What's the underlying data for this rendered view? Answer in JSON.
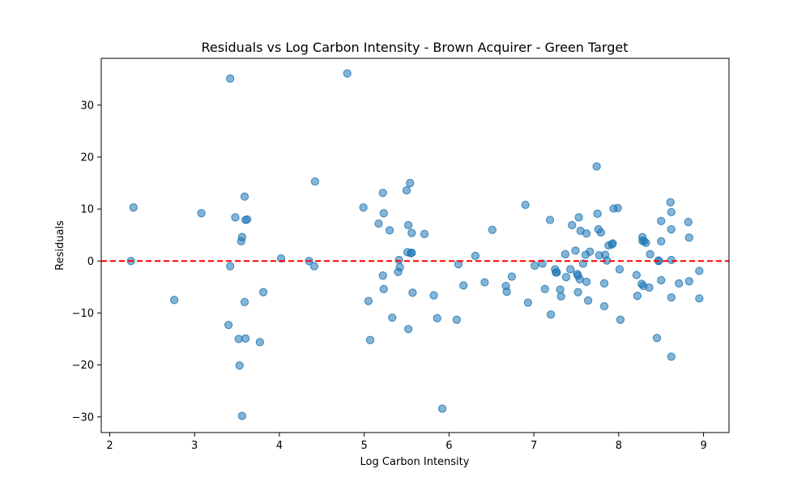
{
  "chart_data": {
    "type": "scatter",
    "title": "Residuals vs Log Carbon Intensity - Brown Acquirer - Green Target",
    "xlabel": "Log Carbon Intensity",
    "ylabel": "Residuals",
    "xlim": [
      1.9,
      9.3
    ],
    "ylim": [
      -33,
      39
    ],
    "xticks": [
      2,
      3,
      4,
      5,
      6,
      7,
      8,
      9
    ],
    "yticks": [
      -30,
      -20,
      -10,
      0,
      10,
      20,
      30
    ],
    "ytick_labels": [
      "−30",
      "−20",
      "−10",
      "0",
      "10",
      "20",
      "30"
    ],
    "grid": false,
    "legend": "none",
    "point_color": "#1f77b4",
    "point_alpha": 0.55,
    "reference_line": {
      "y": 0,
      "color": "#ff0000",
      "style": "dashed"
    },
    "points": [
      {
        "x": 2.25,
        "y": 0.0
      },
      {
        "x": 2.28,
        "y": 10.3
      },
      {
        "x": 2.76,
        "y": -7.5
      },
      {
        "x": 3.08,
        "y": 9.2
      },
      {
        "x": 3.4,
        "y": -12.3
      },
      {
        "x": 3.42,
        "y": 35.1
      },
      {
        "x": 3.42,
        "y": -1.0
      },
      {
        "x": 3.48,
        "y": 8.4
      },
      {
        "x": 3.52,
        "y": -15.0
      },
      {
        "x": 3.53,
        "y": -20.1
      },
      {
        "x": 3.55,
        "y": 3.8
      },
      {
        "x": 3.56,
        "y": 4.6
      },
      {
        "x": 3.56,
        "y": -29.8
      },
      {
        "x": 3.59,
        "y": 12.4
      },
      {
        "x": 3.59,
        "y": -7.9
      },
      {
        "x": 3.6,
        "y": 7.9
      },
      {
        "x": 3.6,
        "y": -14.9
      },
      {
        "x": 3.62,
        "y": 8.0
      },
      {
        "x": 3.77,
        "y": -15.6
      },
      {
        "x": 3.81,
        "y": -6.0
      },
      {
        "x": 4.02,
        "y": 0.5
      },
      {
        "x": 4.35,
        "y": 0.0
      },
      {
        "x": 4.41,
        "y": -1.0
      },
      {
        "x": 4.42,
        "y": 15.3
      },
      {
        "x": 4.8,
        "y": 36.1
      },
      {
        "x": 4.99,
        "y": 10.3
      },
      {
        "x": 5.05,
        "y": -7.7
      },
      {
        "x": 5.07,
        "y": -15.2
      },
      {
        "x": 5.17,
        "y": 7.2
      },
      {
        "x": 5.22,
        "y": 13.1
      },
      {
        "x": 5.22,
        "y": -2.8
      },
      {
        "x": 5.23,
        "y": 9.2
      },
      {
        "x": 5.23,
        "y": -5.4
      },
      {
        "x": 5.3,
        "y": 5.9
      },
      {
        "x": 5.33,
        "y": -10.9
      },
      {
        "x": 5.4,
        "y": -2.1
      },
      {
        "x": 5.41,
        "y": 0.2
      },
      {
        "x": 5.42,
        "y": -1.2
      },
      {
        "x": 5.5,
        "y": 13.6
      },
      {
        "x": 5.51,
        "y": 1.7
      },
      {
        "x": 5.52,
        "y": 6.9
      },
      {
        "x": 5.52,
        "y": -13.1
      },
      {
        "x": 5.54,
        "y": 15.0
      },
      {
        "x": 5.55,
        "y": 1.5
      },
      {
        "x": 5.56,
        "y": 5.4
      },
      {
        "x": 5.56,
        "y": 1.6
      },
      {
        "x": 5.57,
        "y": -6.1
      },
      {
        "x": 5.71,
        "y": 5.2
      },
      {
        "x": 5.82,
        "y": -6.6
      },
      {
        "x": 5.86,
        "y": -11.0
      },
      {
        "x": 5.92,
        "y": -28.4
      },
      {
        "x": 6.09,
        "y": -11.3
      },
      {
        "x": 6.11,
        "y": -0.6
      },
      {
        "x": 6.17,
        "y": -4.7
      },
      {
        "x": 6.31,
        "y": 1.0
      },
      {
        "x": 6.42,
        "y": -4.1
      },
      {
        "x": 6.51,
        "y": 6.0
      },
      {
        "x": 6.67,
        "y": -4.8
      },
      {
        "x": 6.68,
        "y": -5.9
      },
      {
        "x": 6.74,
        "y": -3.0
      },
      {
        "x": 6.9,
        "y": 10.8
      },
      {
        "x": 6.93,
        "y": -8.0
      },
      {
        "x": 7.01,
        "y": -0.9
      },
      {
        "x": 7.1,
        "y": -0.5
      },
      {
        "x": 7.13,
        "y": -5.4
      },
      {
        "x": 7.19,
        "y": 7.9
      },
      {
        "x": 7.2,
        "y": -10.3
      },
      {
        "x": 7.25,
        "y": -1.6
      },
      {
        "x": 7.26,
        "y": -2.2
      },
      {
        "x": 7.27,
        "y": -2.2
      },
      {
        "x": 7.31,
        "y": -5.5
      },
      {
        "x": 7.32,
        "y": -6.8
      },
      {
        "x": 7.37,
        "y": 1.3
      },
      {
        "x": 7.38,
        "y": -3.1
      },
      {
        "x": 7.43,
        "y": -1.6
      },
      {
        "x": 7.45,
        "y": 6.9
      },
      {
        "x": 7.49,
        "y": 2.0
      },
      {
        "x": 7.51,
        "y": -2.5
      },
      {
        "x": 7.52,
        "y": -2.8
      },
      {
        "x": 7.52,
        "y": -6.0
      },
      {
        "x": 7.53,
        "y": 8.4
      },
      {
        "x": 7.54,
        "y": -3.5
      },
      {
        "x": 7.55,
        "y": 5.8
      },
      {
        "x": 7.58,
        "y": -0.5
      },
      {
        "x": 7.61,
        "y": 1.2
      },
      {
        "x": 7.62,
        "y": -4.0
      },
      {
        "x": 7.62,
        "y": 5.3
      },
      {
        "x": 7.64,
        "y": -7.6
      },
      {
        "x": 7.66,
        "y": 1.8
      },
      {
        "x": 7.74,
        "y": 18.2
      },
      {
        "x": 7.75,
        "y": 9.1
      },
      {
        "x": 7.76,
        "y": 6.1
      },
      {
        "x": 7.77,
        "y": 1.1
      },
      {
        "x": 7.79,
        "y": 5.5
      },
      {
        "x": 7.83,
        "y": -8.7
      },
      {
        "x": 7.83,
        "y": -4.3
      },
      {
        "x": 7.84,
        "y": 1.2
      },
      {
        "x": 7.86,
        "y": 0.1
      },
      {
        "x": 7.88,
        "y": 3.0
      },
      {
        "x": 7.92,
        "y": 3.2
      },
      {
        "x": 7.93,
        "y": 3.4
      },
      {
        "x": 7.94,
        "y": 10.1
      },
      {
        "x": 7.99,
        "y": 10.2
      },
      {
        "x": 8.01,
        "y": -1.6
      },
      {
        "x": 8.02,
        "y": -11.3
      },
      {
        "x": 8.21,
        "y": -2.7
      },
      {
        "x": 8.22,
        "y": -6.7
      },
      {
        "x": 8.27,
        "y": -4.4
      },
      {
        "x": 8.28,
        "y": 3.9
      },
      {
        "x": 8.28,
        "y": 4.6
      },
      {
        "x": 8.29,
        "y": -4.8
      },
      {
        "x": 8.3,
        "y": 3.8
      },
      {
        "x": 8.32,
        "y": 3.5
      },
      {
        "x": 8.36,
        "y": -5.1
      },
      {
        "x": 8.37,
        "y": 1.3
      },
      {
        "x": 8.45,
        "y": -14.8
      },
      {
        "x": 8.47,
        "y": 0.1
      },
      {
        "x": 8.47,
        "y": 0.0
      },
      {
        "x": 8.5,
        "y": 7.7
      },
      {
        "x": 8.5,
        "y": 3.8
      },
      {
        "x": 8.5,
        "y": -3.7
      },
      {
        "x": 8.61,
        "y": 11.3
      },
      {
        "x": 8.62,
        "y": 9.4
      },
      {
        "x": 8.62,
        "y": 6.1
      },
      {
        "x": 8.62,
        "y": 0.2
      },
      {
        "x": 8.62,
        "y": -7.0
      },
      {
        "x": 8.62,
        "y": -18.4
      },
      {
        "x": 8.71,
        "y": -4.3
      },
      {
        "x": 8.82,
        "y": 7.5
      },
      {
        "x": 8.83,
        "y": 4.5
      },
      {
        "x": 8.83,
        "y": -3.9
      },
      {
        "x": 8.95,
        "y": -1.9
      },
      {
        "x": 8.95,
        "y": -7.2
      }
    ]
  }
}
